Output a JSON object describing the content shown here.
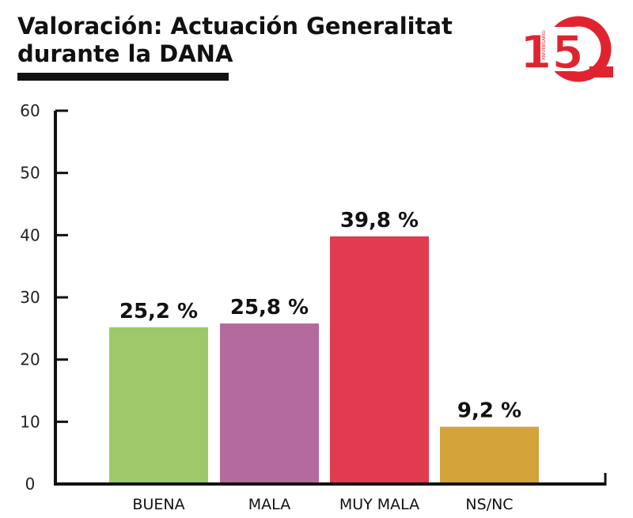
{
  "header": {
    "title_line1": "Valoración: Actuación Generalitat",
    "title_line2": "durante la DANA"
  },
  "logo": {
    "number": "15",
    "text": "ANIVERSARIO",
    "color": "#e0242f"
  },
  "chart_data": {
    "type": "bar",
    "title": "Valoración: Actuación Generalitat durante la DANA",
    "xlabel": "",
    "ylabel": "",
    "ylim": [
      0,
      60
    ],
    "yticks": [
      0,
      10,
      20,
      30,
      40,
      50,
      60
    ],
    "yticklabels": [
      "0",
      "10",
      "20",
      "30",
      "40",
      "50",
      "60"
    ],
    "categories": [
      "BUENA",
      "MALA",
      "MUY MALA",
      "NS/NC"
    ],
    "values": [
      25.2,
      25.8,
      39.8,
      9.2
    ],
    "value_labels": [
      "25,2 %",
      "25,8 %",
      "39,8 %",
      "9,2 %"
    ],
    "colors": [
      "#9dc96a",
      "#b56a9c",
      "#e23a4e",
      "#d4a33a"
    ],
    "grid": false,
    "legend": "none"
  }
}
